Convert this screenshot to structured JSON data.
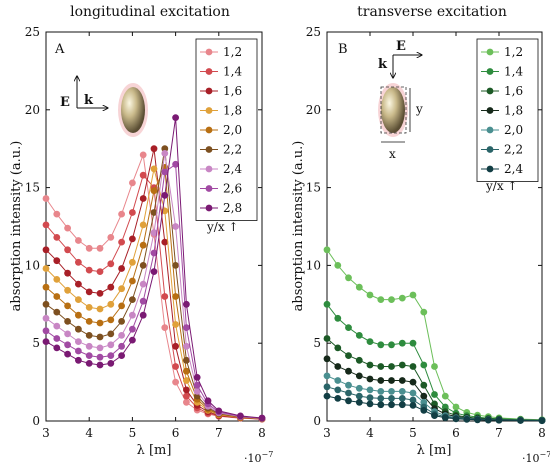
{
  "chart_data": [
    {
      "type": "line",
      "title": "longitudinal excitation",
      "panel_label": "A",
      "xlabel": "λ [m]",
      "ylabel": "absorption intensity (a.u.)",
      "x_exponent": "·10",
      "x_exponent_power": "−7",
      "xlim": [
        3,
        8
      ],
      "ylim": [
        0,
        25
      ],
      "xticks": [
        "3",
        "4",
        "5",
        "6",
        "7",
        "8"
      ],
      "yticks": [
        "0",
        "5",
        "10",
        "15",
        "20",
        "25"
      ],
      "grid": false,
      "legend_position": "top-right",
      "legend_note": "y/x ↑",
      "inset_labels": {
        "field": "E",
        "wave": "k"
      },
      "x": [
        3.0,
        3.25,
        3.5,
        3.75,
        4.0,
        4.25,
        4.5,
        4.75,
        5.0,
        5.25,
        5.5,
        5.75,
        6.0,
        6.25,
        6.5,
        6.75,
        7.0,
        7.5,
        8.0
      ],
      "series": [
        {
          "name": "1,2",
          "color": "#e8868c",
          "values": [
            14.3,
            13.3,
            12.4,
            11.6,
            11.1,
            11.1,
            11.8,
            13.3,
            15.3,
            17.1,
            12.0,
            6.0,
            2.5,
            1.2,
            0.7,
            0.45,
            0.3,
            0.18,
            0.12
          ]
        },
        {
          "name": "1,4",
          "color": "#d24a4f",
          "values": [
            12.6,
            11.8,
            11.0,
            10.2,
            9.7,
            9.6,
            10.1,
            11.5,
            13.4,
            15.8,
            15.0,
            8.0,
            3.5,
            1.6,
            0.85,
            0.5,
            0.32,
            0.19,
            0.12
          ]
        },
        {
          "name": "1,6",
          "color": "#a81f27",
          "values": [
            11.0,
            10.3,
            9.5,
            8.8,
            8.3,
            8.2,
            8.6,
            9.8,
            11.7,
            14.3,
            17.5,
            11.5,
            4.8,
            2.0,
            1.0,
            0.6,
            0.35,
            0.2,
            0.13
          ]
        },
        {
          "name": "1,8",
          "color": "#e0a13a",
          "values": [
            9.8,
            9.1,
            8.4,
            7.8,
            7.3,
            7.2,
            7.5,
            8.5,
            10.2,
            12.6,
            16.2,
            13.5,
            6.2,
            2.6,
            1.2,
            0.68,
            0.4,
            0.22,
            0.14
          ]
        },
        {
          "name": "2,0",
          "color": "#b86f12",
          "values": [
            8.6,
            8.0,
            7.4,
            6.8,
            6.4,
            6.3,
            6.5,
            7.4,
            9.0,
            11.3,
            14.8,
            16.3,
            8.0,
            3.2,
            1.4,
            0.75,
            0.44,
            0.24,
            0.15
          ]
        },
        {
          "name": "2,2",
          "color": "#7d5020",
          "values": [
            7.5,
            7.0,
            6.4,
            5.9,
            5.5,
            5.4,
            5.6,
            6.4,
            7.8,
            10.0,
            13.4,
            17.5,
            10.0,
            3.9,
            1.6,
            0.85,
            0.48,
            0.26,
            0.16
          ]
        },
        {
          "name": "2,4",
          "color": "#c886c4",
          "values": [
            6.6,
            6.1,
            5.6,
            5.1,
            4.8,
            4.7,
            4.9,
            5.5,
            6.8,
            8.8,
            12.1,
            17.2,
            12.5,
            4.8,
            1.9,
            0.95,
            0.52,
            0.28,
            0.17
          ]
        },
        {
          "name": "2,6",
          "color": "#a14aa3",
          "values": [
            5.8,
            5.3,
            4.9,
            4.5,
            4.2,
            4.1,
            4.2,
            4.8,
            5.9,
            7.7,
            10.8,
            16.0,
            16.5,
            6.0,
            2.3,
            1.1,
            0.58,
            0.3,
            0.18
          ]
        },
        {
          "name": "2,8",
          "color": "#7a1a73",
          "values": [
            5.1,
            4.7,
            4.3,
            3.9,
            3.7,
            3.6,
            3.7,
            4.2,
            5.2,
            6.8,
            9.6,
            14.5,
            19.5,
            7.5,
            2.8,
            1.3,
            0.65,
            0.33,
            0.19
          ]
        }
      ]
    },
    {
      "type": "line",
      "title": "transverse excitation",
      "panel_label": "B",
      "xlabel": "λ [m]",
      "ylabel": "absorption intensity (a.u.)",
      "x_exponent": "·10",
      "x_exponent_power": "−7",
      "xlim": [
        3,
        8
      ],
      "ylim": [
        0,
        25
      ],
      "xticks": [
        "3",
        "4",
        "5",
        "6",
        "7",
        "8"
      ],
      "yticks": [
        "0",
        "5",
        "10",
        "15",
        "20",
        "25"
      ],
      "grid": false,
      "legend_position": "top-right",
      "legend_note": "y/x ↑",
      "inset_labels": {
        "field": "E",
        "wave": "k",
        "height": "y",
        "width": "x"
      },
      "x": [
        3.0,
        3.25,
        3.5,
        3.75,
        4.0,
        4.25,
        4.5,
        4.75,
        5.0,
        5.25,
        5.5,
        5.75,
        6.0,
        6.25,
        6.5,
        6.75,
        7.0,
        7.5,
        8.0
      ],
      "series": [
        {
          "name": "1,2",
          "color": "#6cbf5a",
          "values": [
            11.0,
            10.0,
            9.2,
            8.6,
            8.1,
            7.8,
            7.8,
            7.9,
            8.1,
            7.0,
            3.5,
            1.6,
            0.9,
            0.55,
            0.38,
            0.28,
            0.2,
            0.12,
            0.08
          ]
        },
        {
          "name": "1,4",
          "color": "#2e8c3e",
          "values": [
            7.5,
            6.6,
            6.0,
            5.5,
            5.1,
            4.9,
            4.9,
            5.0,
            5.0,
            3.6,
            1.7,
            0.9,
            0.5,
            0.35,
            0.25,
            0.18,
            0.14,
            0.09,
            0.06
          ]
        },
        {
          "name": "1,6",
          "color": "#1c5a26",
          "values": [
            5.3,
            4.7,
            4.2,
            3.9,
            3.6,
            3.5,
            3.5,
            3.6,
            3.5,
            2.3,
            1.1,
            0.6,
            0.36,
            0.25,
            0.18,
            0.14,
            0.11,
            0.07,
            0.05
          ]
        },
        {
          "name": "1,8",
          "color": "#16291a",
          "values": [
            4.0,
            3.5,
            3.2,
            2.9,
            2.7,
            2.6,
            2.6,
            2.6,
            2.5,
            1.6,
            0.8,
            0.45,
            0.28,
            0.2,
            0.15,
            0.11,
            0.09,
            0.06,
            0.04
          ]
        },
        {
          "name": "2,0",
          "color": "#4a8f90",
          "values": [
            2.9,
            2.6,
            2.3,
            2.1,
            2.0,
            1.9,
            1.9,
            1.9,
            1.8,
            1.2,
            0.6,
            0.35,
            0.22,
            0.16,
            0.12,
            0.09,
            0.07,
            0.05,
            0.04
          ]
        },
        {
          "name": "2,2",
          "color": "#2a6468",
          "values": [
            2.2,
            2.0,
            1.8,
            1.6,
            1.5,
            1.45,
            1.45,
            1.45,
            1.35,
            0.9,
            0.45,
            0.27,
            0.18,
            0.13,
            0.1,
            0.08,
            0.06,
            0.04,
            0.03
          ]
        },
        {
          "name": "2,4",
          "color": "#123e44",
          "values": [
            1.6,
            1.45,
            1.3,
            1.2,
            1.1,
            1.05,
            1.05,
            1.05,
            1.0,
            0.68,
            0.35,
            0.21,
            0.14,
            0.1,
            0.08,
            0.06,
            0.05,
            0.03,
            0.02
          ]
        }
      ]
    }
  ]
}
